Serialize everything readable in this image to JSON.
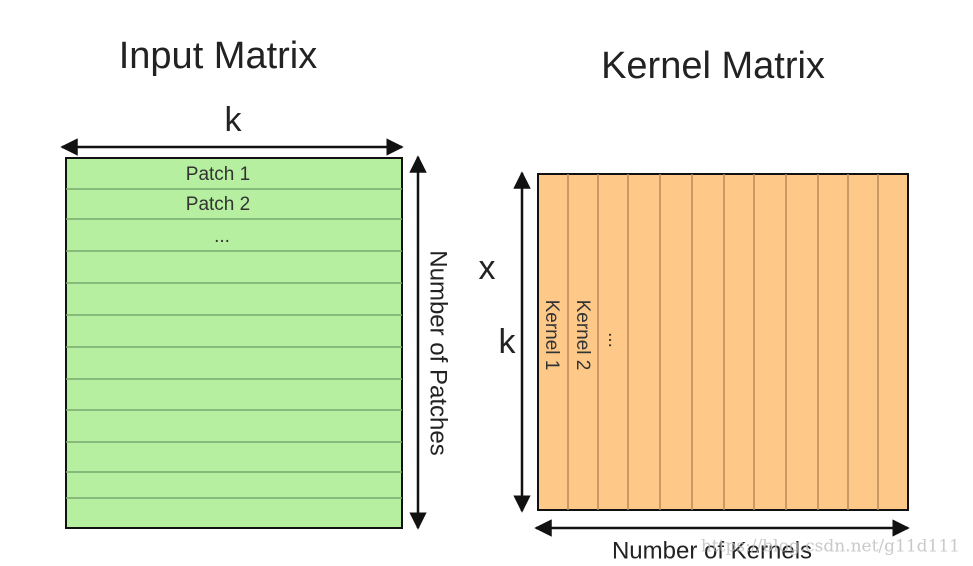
{
  "input": {
    "title": "Input Matrix",
    "width_label": "k",
    "rows": [
      "Patch 1",
      "Patch 2",
      "..."
    ],
    "height_label": "Number of Patches"
  },
  "kernel": {
    "title": "Kernel Matrix",
    "height_label_top": "x",
    "height_label_bottom": "k",
    "columns": [
      "Kernel 1",
      "Kernel 2",
      "..."
    ],
    "width_label": "Number of Kernels"
  },
  "watermark": "https://blog.csdn.net/g11d111"
}
